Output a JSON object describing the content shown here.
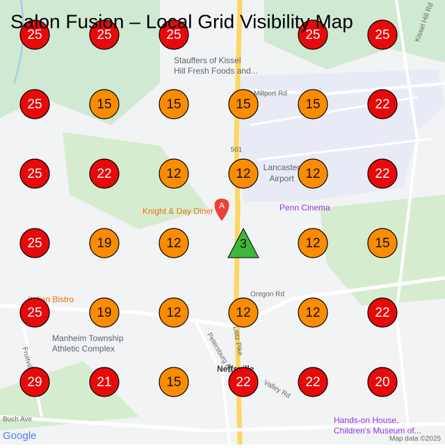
{
  "title": "Salon Fusion – Local Grid Visibility Map",
  "grid": {
    "rows": [
      [
        25,
        25,
        25,
        null,
        25,
        25
      ],
      [
        25,
        15,
        15,
        15,
        15,
        22
      ],
      [
        25,
        22,
        12,
        12,
        12,
        22
      ],
      [
        25,
        19,
        12,
        null,
        12,
        15
      ],
      [
        25,
        19,
        12,
        12,
        12,
        22
      ],
      [
        29,
        21,
        15,
        22,
        22,
        20
      ]
    ],
    "center": {
      "value": 3,
      "pin": "A"
    },
    "colors": {
      "red": "#e60a0a",
      "orange": "#fb8c00",
      "green": "#3cb83c"
    }
  },
  "labels": [
    "Stauffers of Kissel",
    "Hill Fresh Foods and...",
    "Millport Rd",
    "Kissel Hill Rd",
    "501",
    "Lancaster",
    "Airport",
    "Knight & Day Diner",
    "Penn Cinema",
    "Oregon Rd",
    "Petersburg Rd",
    "Manheim Township",
    "Athletic Complex",
    "Neffsville",
    "Buch Ave",
    "Hands-on House,",
    "Children's Museum of...",
    "Fruitville Pike",
    "Italian Bistro",
    "Valley Rd",
    "Lititz Pike",
    "Google",
    "Map data ©2025"
  ]
}
